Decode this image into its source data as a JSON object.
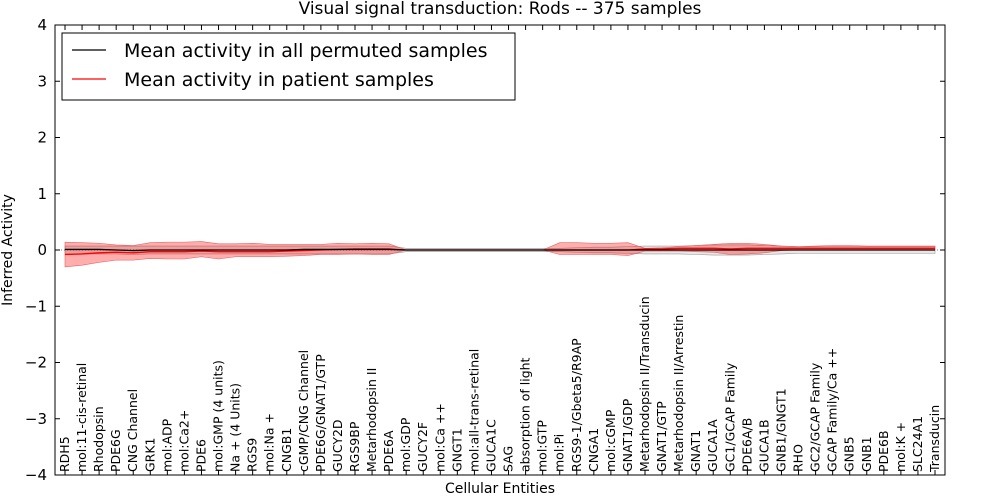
{
  "chart_data": {
    "type": "line",
    "title": "Visual signal transduction: Rods -- 375 samples",
    "xlabel": "Cellular Entities",
    "ylabel": "Inferred Activity",
    "ylim": [
      -4,
      4
    ],
    "yticks": [
      4,
      3,
      2,
      1,
      0,
      -1,
      -2,
      -3,
      -4
    ],
    "ytick_labels": [
      "4",
      "3",
      "2",
      "1",
      "0",
      "−1",
      "−2",
      "−3",
      "−4"
    ],
    "legend_position": "top-left",
    "categories": [
      "RDH5",
      "mol:11-cis-retinal",
      "Rhodopsin",
      "PDE6G",
      "CNG Channel",
      "GRK1",
      "mol:ADP",
      "mol:Ca2+",
      "PDE6",
      "mol:GMP (4 units)",
      "Na + (4 Units)",
      "RGS9",
      "mol:Na +",
      "CNGB1",
      "cGMP/CNG Channel",
      "PDE6G/GNAT1/GTP",
      "GUCY2D",
      "RGS9BP",
      "Metarhodopsin II",
      "PDE6A",
      "mol:GDP",
      "GUCY2F",
      "mol:Ca ++",
      "GNGT1",
      "mol:all-trans-retinal",
      "GUCA1C",
      "SAG",
      "absorption of light",
      "mol:GTP",
      "mol:Pi",
      "RGS9-1/Gbeta5/R9AP",
      "CNGA1",
      "mol:cGMP",
      "GNAT1/GDP",
      "Metarhodopsin II/Transducin",
      "GNAT1/GTP",
      "Metarhodopsin II/Arrestin",
      "GNAT1",
      "GUCA1A",
      "GC1/GCAP Family",
      "PDE6A/B",
      "GUCA1B",
      "GNB1/GNGT1",
      "RHO",
      "GC2/GCAP Family",
      "GCAP Family/Ca ++",
      "GNB5",
      "GNB1",
      "PDE6B",
      "mol:K +",
      "SLC24A1",
      "Transducin"
    ],
    "series": [
      {
        "name": "Mean activity in all permuted samples",
        "color": "#000000",
        "values": [
          0.01,
          0.01,
          0.01,
          0.0,
          -0.01,
          0.0,
          0.0,
          0.0,
          0.0,
          0.0,
          0.0,
          0.0,
          0.0,
          0.0,
          0.01,
          0.01,
          0.01,
          0.01,
          0.01,
          0.01,
          0.0,
          0.0,
          0.0,
          0.0,
          0.0,
          0.0,
          0.0,
          0.0,
          0.0,
          0.0,
          0.0,
          0.0,
          0.0,
          0.0,
          0.0,
          0.0,
          0.0,
          0.0,
          0.0,
          0.0,
          0.0,
          0.0,
          0.0,
          0.0,
          0.0,
          0.0,
          0.0,
          0.0,
          0.0,
          0.0,
          0.0,
          0.0
        ],
        "lower": [
          -0.07,
          -0.07,
          -0.07,
          -0.07,
          -0.08,
          -0.07,
          -0.07,
          -0.07,
          -0.07,
          -0.07,
          -0.07,
          -0.07,
          -0.07,
          -0.07,
          -0.07,
          -0.07,
          -0.07,
          -0.07,
          -0.07,
          -0.07,
          -0.03,
          -0.03,
          -0.03,
          -0.03,
          -0.03,
          -0.03,
          -0.03,
          -0.03,
          -0.03,
          -0.03,
          -0.04,
          -0.05,
          -0.05,
          -0.06,
          -0.07,
          -0.07,
          -0.07,
          -0.08,
          -0.09,
          -0.09,
          -0.09,
          -0.08,
          -0.07,
          -0.06,
          -0.06,
          -0.06,
          -0.06,
          -0.06,
          -0.06,
          -0.06,
          -0.06,
          -0.06
        ],
        "upper": [
          0.07,
          0.07,
          0.07,
          0.07,
          0.07,
          0.07,
          0.07,
          0.07,
          0.07,
          0.07,
          0.07,
          0.07,
          0.07,
          0.07,
          0.07,
          0.07,
          0.07,
          0.07,
          0.07,
          0.07,
          0.03,
          0.03,
          0.03,
          0.03,
          0.03,
          0.03,
          0.03,
          0.03,
          0.03,
          0.03,
          0.04,
          0.05,
          0.05,
          0.06,
          0.07,
          0.07,
          0.07,
          0.08,
          0.09,
          0.09,
          0.09,
          0.08,
          0.07,
          0.06,
          0.06,
          0.06,
          0.06,
          0.06,
          0.06,
          0.06,
          0.06,
          0.06
        ]
      },
      {
        "name": "Mean activity in patient samples",
        "color": "#ff0000",
        "values": [
          -0.08,
          -0.07,
          -0.05,
          -0.04,
          -0.05,
          -0.03,
          -0.03,
          -0.03,
          -0.02,
          -0.03,
          -0.03,
          -0.03,
          -0.03,
          -0.02,
          -0.01,
          0.0,
          0.01,
          0.02,
          0.02,
          0.02,
          0.0,
          0.0,
          0.0,
          0.0,
          0.0,
          0.0,
          0.0,
          0.0,
          0.0,
          0.0,
          0.0,
          0.0,
          0.0,
          0.0,
          0.02,
          0.02,
          0.03,
          0.03,
          0.03,
          0.02,
          0.03,
          0.03,
          0.03,
          0.03,
          0.03,
          0.03,
          0.03,
          0.03,
          0.03,
          0.03,
          0.03,
          0.03
        ],
        "lower": [
          -0.3,
          -0.27,
          -0.22,
          -0.18,
          -0.18,
          -0.15,
          -0.16,
          -0.16,
          -0.12,
          -0.16,
          -0.12,
          -0.12,
          -0.12,
          -0.11,
          -0.1,
          -0.08,
          -0.08,
          -0.07,
          -0.08,
          -0.08,
          0.0,
          0.0,
          0.0,
          0.0,
          0.0,
          0.0,
          0.0,
          0.0,
          0.0,
          -0.08,
          -0.08,
          -0.08,
          -0.08,
          -0.1,
          -0.02,
          -0.02,
          -0.02,
          -0.03,
          -0.04,
          -0.08,
          -0.07,
          -0.05,
          -0.01,
          0.0,
          0.0,
          0.0,
          0.0,
          0.0,
          0.0,
          0.0,
          0.0,
          0.0
        ],
        "upper": [
          0.14,
          0.13,
          0.12,
          0.09,
          0.08,
          0.13,
          0.14,
          0.14,
          0.15,
          0.11,
          0.11,
          0.12,
          0.1,
          0.1,
          0.1,
          0.1,
          0.12,
          0.11,
          0.12,
          0.11,
          0.0,
          0.0,
          0.0,
          0.0,
          0.0,
          0.0,
          0.0,
          0.0,
          0.0,
          0.13,
          0.13,
          0.12,
          0.12,
          0.13,
          0.03,
          0.04,
          0.06,
          0.08,
          0.1,
          0.12,
          0.12,
          0.1,
          0.07,
          0.06,
          0.07,
          0.08,
          0.08,
          0.07,
          0.07,
          0.07,
          0.07,
          0.07
        ]
      }
    ]
  }
}
